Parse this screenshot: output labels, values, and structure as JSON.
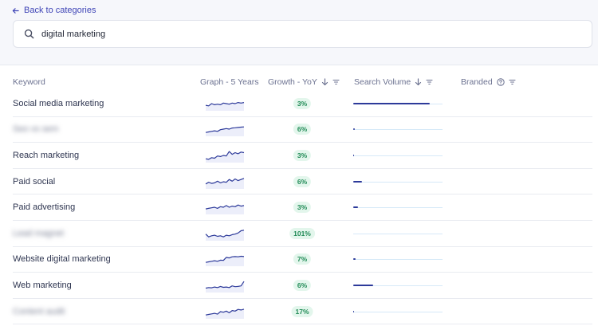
{
  "nav": {
    "back_label": "Back to categories"
  },
  "search": {
    "query": "digital marketing"
  },
  "columns": {
    "keyword": "Keyword",
    "graph": "Graph - 5 Years",
    "growth": "Growth - YoY",
    "volume": "Search Volume",
    "branded": "Branded"
  },
  "colors": {
    "accent": "#3e44b6",
    "badge_bg": "#e3f6ec",
    "badge_text": "#1f8a55",
    "volume_bar": "#2d3a9a"
  },
  "rows": [
    {
      "keyword": "Social media marketing",
      "blurred": false,
      "growth": "3%",
      "volume_fraction": 0.86,
      "trend": [
        0.35,
        0.3,
        0.5,
        0.4,
        0.45,
        0.4,
        0.55,
        0.5,
        0.45,
        0.55,
        0.5,
        0.6,
        0.55,
        0.6
      ]
    },
    {
      "keyword": "Seo vs sem",
      "blurred": true,
      "growth": "6%",
      "volume_fraction": 0.02,
      "trend": [
        0.2,
        0.25,
        0.3,
        0.35,
        0.3,
        0.45,
        0.5,
        0.55,
        0.5,
        0.6,
        0.62,
        0.65,
        0.68,
        0.7
      ]
    },
    {
      "keyword": "Reach marketing",
      "blurred": false,
      "growth": "3%",
      "volume_fraction": 0.01,
      "trend": [
        0.2,
        0.15,
        0.3,
        0.25,
        0.45,
        0.4,
        0.5,
        0.45,
        0.85,
        0.6,
        0.75,
        0.65,
        0.8,
        0.75
      ]
    },
    {
      "keyword": "Paid social",
      "blurred": false,
      "growth": "6%",
      "volume_fraction": 0.1,
      "trend": [
        0.3,
        0.45,
        0.35,
        0.4,
        0.55,
        0.4,
        0.5,
        0.45,
        0.7,
        0.55,
        0.75,
        0.6,
        0.7,
        0.8
      ]
    },
    {
      "keyword": "Paid advertising",
      "blurred": false,
      "growth": "3%",
      "volume_fraction": 0.05,
      "trend": [
        0.35,
        0.4,
        0.45,
        0.5,
        0.4,
        0.55,
        0.5,
        0.65,
        0.5,
        0.6,
        0.55,
        0.7,
        0.6,
        0.65
      ]
    },
    {
      "keyword": "Lead magnet",
      "blurred": true,
      "growth": "101%",
      "volume_fraction": 0.0,
      "trend": [
        0.45,
        0.2,
        0.3,
        0.35,
        0.25,
        0.3,
        0.2,
        0.35,
        0.3,
        0.4,
        0.45,
        0.55,
        0.75,
        0.8
      ]
    },
    {
      "keyword": "Website digital marketing",
      "blurred": false,
      "growth": "7%",
      "volume_fraction": 0.03,
      "trend": [
        0.2,
        0.25,
        0.3,
        0.35,
        0.3,
        0.4,
        0.38,
        0.65,
        0.6,
        0.7,
        0.72,
        0.7,
        0.75,
        0.72
      ]
    },
    {
      "keyword": "Web marketing",
      "blurred": false,
      "growth": "6%",
      "volume_fraction": 0.22,
      "trend": [
        0.25,
        0.3,
        0.28,
        0.35,
        0.3,
        0.4,
        0.32,
        0.35,
        0.3,
        0.45,
        0.38,
        0.4,
        0.45,
        0.85
      ]
    },
    {
      "keyword": "Content audit",
      "blurred": true,
      "growth": "17%",
      "volume_fraction": 0.01,
      "trend": [
        0.2,
        0.25,
        0.3,
        0.35,
        0.28,
        0.5,
        0.45,
        0.55,
        0.4,
        0.6,
        0.55,
        0.7,
        0.65,
        0.72
      ]
    }
  ]
}
